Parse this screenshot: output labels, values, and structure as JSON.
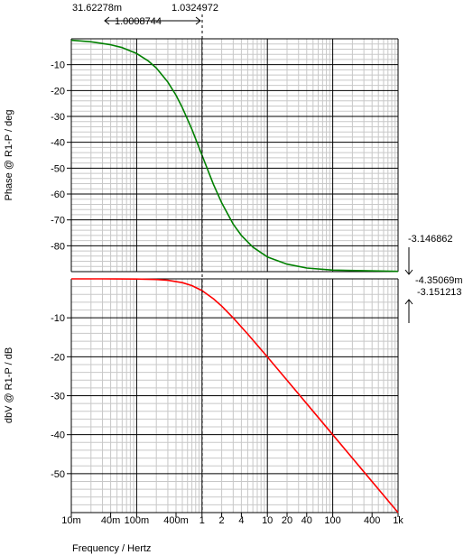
{
  "cursors": {
    "x1": "31.62278m",
    "x2": "1.0324972",
    "dx": "1.0008744",
    "dy_phase_upper": "-3.146862",
    "dy_readout": "-4.35069m",
    "dy_gain_lower": "-3.151213"
  },
  "chart_data": [
    {
      "type": "line",
      "title": "",
      "ylabel": "Phase @ R1-P / deg",
      "xscale": "log",
      "xlim": [
        0.01,
        1000
      ],
      "ylim": [
        -90,
        0
      ],
      "yticks": [
        -10,
        -20,
        -30,
        -40,
        -50,
        -60,
        -70,
        -80
      ],
      "grid": true,
      "series": [
        {
          "color": "#008000",
          "x": [
            0.01,
            0.02,
            0.04,
            0.06,
            0.1,
            0.15,
            0.2,
            0.3,
            0.4,
            0.5,
            0.7,
            1,
            1.5,
            2,
            3,
            4,
            6,
            10,
            20,
            40,
            100,
            1000
          ],
          "y": [
            -0.57,
            -1.15,
            -2.3,
            -3.4,
            -5.7,
            -8.5,
            -11.3,
            -16.7,
            -21.8,
            -26.6,
            -35,
            -45,
            -56.3,
            -63.4,
            -71.6,
            -76,
            -80.5,
            -84.3,
            -87.1,
            -88.6,
            -89.4,
            -89.9
          ]
        }
      ]
    },
    {
      "type": "line",
      "title": "",
      "xlabel": "Frequency / Hertz",
      "ylabel": "dbV @ R1-P / dB",
      "xscale": "log",
      "xlim": [
        0.01,
        1000
      ],
      "ylim": [
        -60,
        0
      ],
      "yticks": [
        -10,
        -20,
        -30,
        -40,
        -50
      ],
      "xticklabels": [
        {
          "v": 0.01,
          "t": "10m"
        },
        {
          "v": 0.04,
          "t": "40m"
        },
        {
          "v": 0.1,
          "t": "100m"
        },
        {
          "v": 0.4,
          "t": "400m"
        },
        {
          "v": 1,
          "t": "1"
        },
        {
          "v": 2,
          "t": "2"
        },
        {
          "v": 4,
          "t": "4"
        },
        {
          "v": 10,
          "t": "10"
        },
        {
          "v": 20,
          "t": "20"
        },
        {
          "v": 40,
          "t": "40"
        },
        {
          "v": 100,
          "t": "100"
        },
        {
          "v": 400,
          "t": "400"
        },
        {
          "v": 1000,
          "t": "1k"
        }
      ],
      "grid": true,
      "series": [
        {
          "color": "#ff0000",
          "x": [
            0.01,
            0.03,
            0.1,
            0.2,
            0.3,
            0.5,
            0.7,
            1,
            1.5,
            2,
            3,
            5,
            10,
            20,
            50,
            100,
            300,
            1000
          ],
          "y": [
            0,
            0,
            -0.04,
            -0.17,
            -0.37,
            -0.97,
            -1.73,
            -3.01,
            -5.12,
            -6.99,
            -10,
            -14.15,
            -20.04,
            -26.03,
            -33.98,
            -40,
            -49.54,
            -60
          ]
        }
      ]
    }
  ]
}
